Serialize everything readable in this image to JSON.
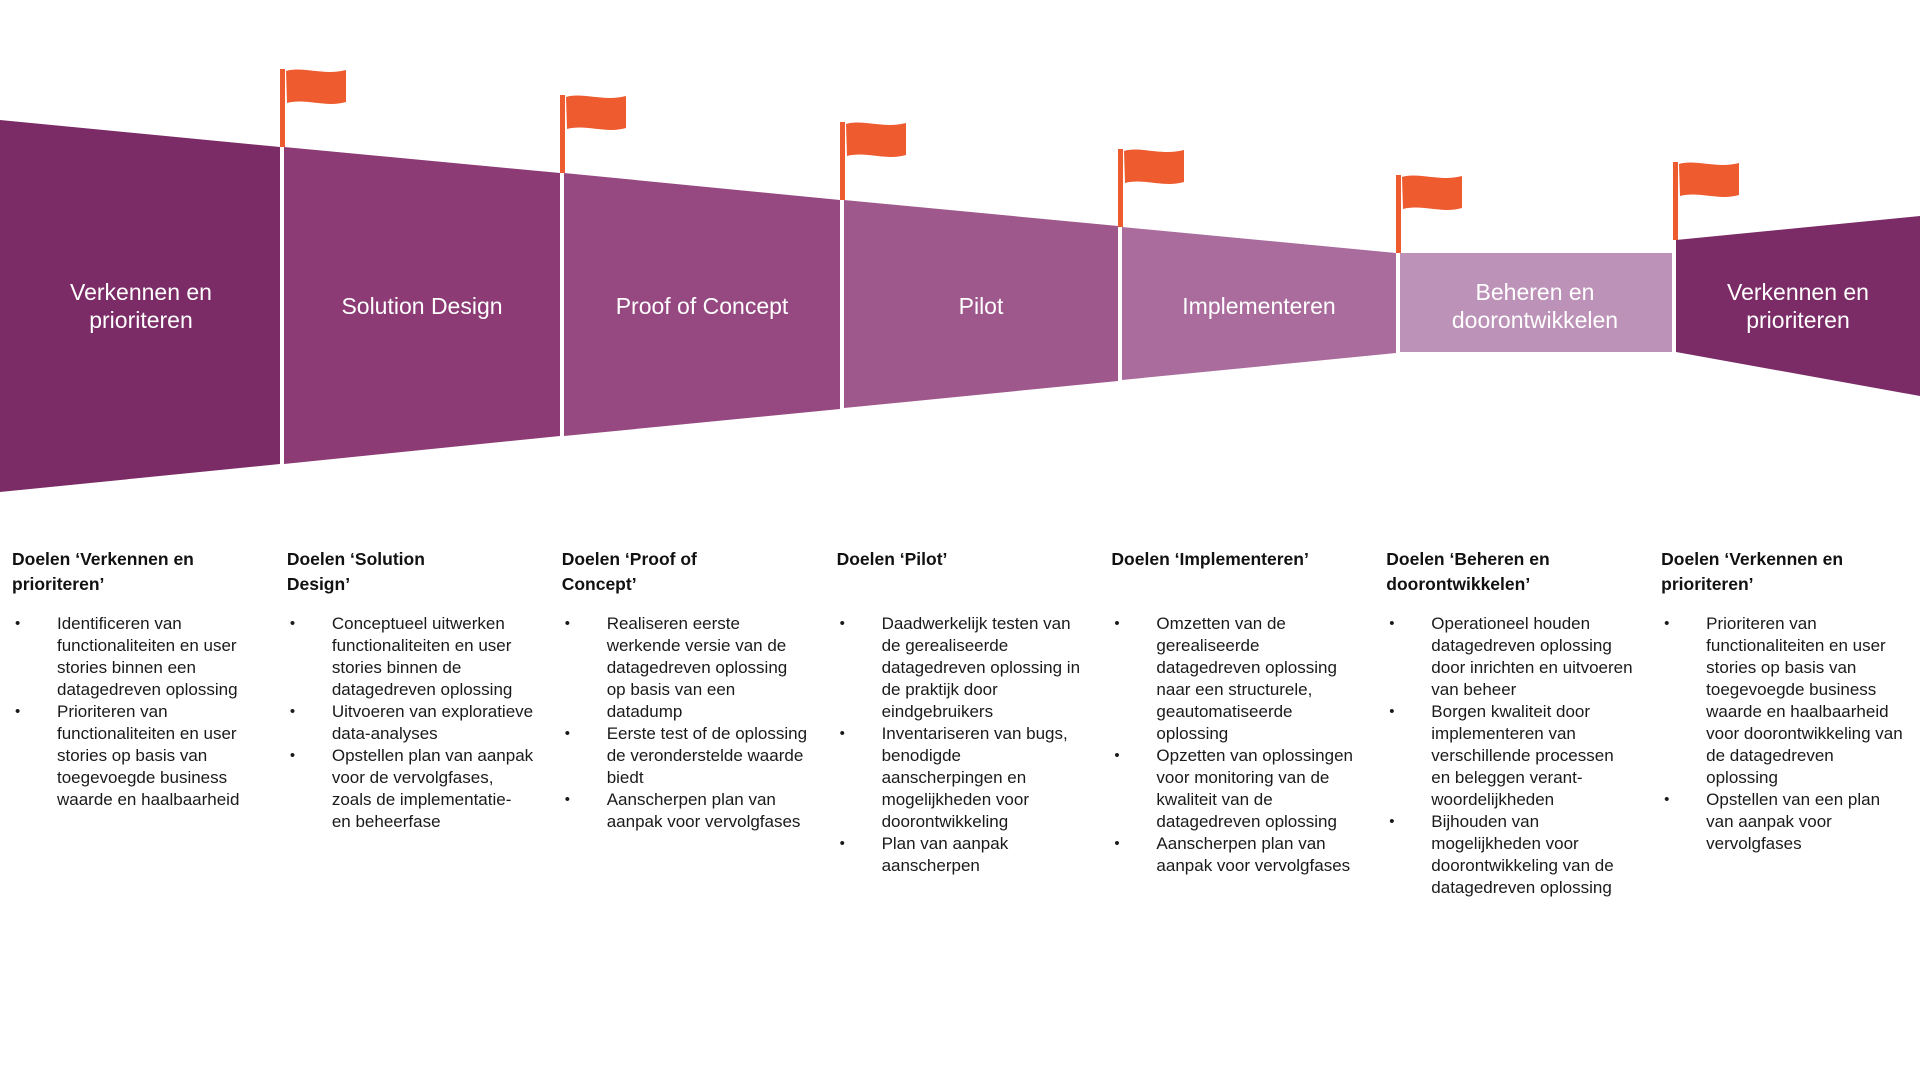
{
  "flag_color": "#EE5B2F",
  "bullet_glyph": "•",
  "phases": [
    {
      "label": "Verkennen en\nprioriteren",
      "color": "#7B2B66",
      "goals_title": "Doelen ‘Verkennen en\nprioriteren’",
      "goals": [
        "Identificeren van functionaliteiten en user stories binnen een datagedreven oplossing",
        "Prioriteren van functionaliteiten en user stories op basis van toegevoegde business waarde en haalbaarheid"
      ]
    },
    {
      "label": "Solution Design",
      "color": "#8C3B75",
      "goals_title": "Doelen ‘Solution\nDesign’",
      "goals": [
        "Conceptueel uitwerken functionaliteiten en user stories binnen de datagedreven oplossing",
        "Uitvoeren van exploratieve data-analyses",
        "Opstellen plan van aanpak voor de vervolgfases, zoals de implementatie- en beheerfase"
      ]
    },
    {
      "label": "Proof of Concept",
      "color": "#964880",
      "goals_title": "Doelen ‘Proof of\nConcept’",
      "goals": [
        "Realiseren eerste werkende versie van de datagedreven oplossing op basis van een datadump",
        "Eerste test of de oplossing de veronderstelde waarde biedt",
        "Aanscherpen plan van aanpak voor vervolgfases"
      ]
    },
    {
      "label": "Pilot",
      "color": "#9F588B",
      "goals_title": "Doelen ‘Pilot’",
      "goals": [
        "Daadwerkelijk testen van de gerealiseerde datagedreven oplossing in de praktijk door eindgebruikers",
        "Inventariseren van bugs, benodigde aanscherpingen en mogelijkheden voor doorontwikkeling",
        "Plan van aanpak aanscherpen"
      ]
    },
    {
      "label": "Implementeren",
      "color": "#A96C9C",
      "goals_title": "Doelen ‘Implementeren’",
      "goals": [
        "Omzetten van de gerealiseerde datagedreven oplossing naar een structurele, geautomatiseerde oplossing",
        "Opzetten van oplossingen voor monitoring van de kwaliteit van de datagedreven oplossing",
        "Aanscherpen plan van aanpak voor vervolgfases"
      ]
    },
    {
      "label": "Beheren en\ndoorontwikkelen",
      "color": "#BD92B8",
      "goals_title": "Doelen ‘Beheren en\ndoorontwikkelen’",
      "goals": [
        "Operationeel houden datagedreven oplossing door inrichten en uitvoeren van beheer",
        "Borgen kwaliteit door implementeren van verschillende processen en beleggen verant-woordelijkheden",
        "Bijhouden van mogelijkheden voor doorontwikkeling van de datagedreven oplossing"
      ]
    },
    {
      "label": "Verkennen en\nprioriteren",
      "color": "#7B2B66",
      "goals_title": "Doelen ‘Verkennen en\nprioriteren’",
      "goals": [
        "Prioriteren van functionaliteiten en user stories op basis van toegevoegde business waarde en haalbaarheid voor doorontwikkeling van de datagedreven oplossing",
        "Opstellen van een plan van aanpak voor vervolgfases"
      ]
    }
  ]
}
